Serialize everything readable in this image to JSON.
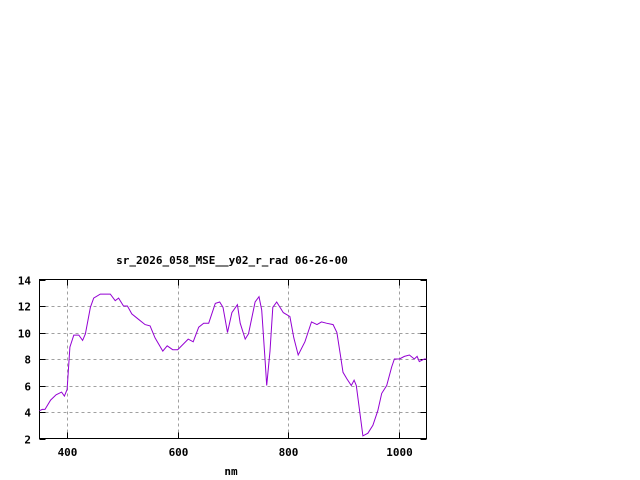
{
  "chart_data": {
    "type": "line",
    "title": "sr_2026_058_MSE__y02_r_rad 06-26-00",
    "xlabel": "nm",
    "ylabel": "",
    "xlim": [
      350,
      1050
    ],
    "ylim": [
      2,
      14
    ],
    "xticks": [
      400,
      600,
      800,
      1000
    ],
    "yticks": [
      2,
      4,
      6,
      8,
      10,
      12,
      14
    ],
    "grid": true,
    "series_color": "#9400d3",
    "series": [
      {
        "x": [
          350,
          355,
          360,
          370,
          380,
          390,
          395,
          400,
          405,
          412,
          421,
          428,
          433,
          442,
          448,
          460,
          478,
          487,
          493,
          502,
          509,
          517,
          529,
          541,
          550,
          559,
          573,
          581,
          591,
          600,
          619,
          628,
          638,
          647,
          656,
          668,
          676,
          682,
          690,
          698,
          708,
          713,
          722,
          728,
          740,
          747,
          752,
          758,
          761,
          767,
          772,
          779,
          791,
          803,
          810,
          818,
          830,
          842,
          852,
          860,
          869,
          881,
          888,
          895,
          899,
          906,
          914,
          919,
          923,
          929,
          935,
          944,
          953,
          962,
          969,
          978,
          987,
          992,
          1001,
          1010,
          1019,
          1028,
          1033,
          1037,
          1046,
          1050
        ],
        "y": [
          4.1,
          4.2,
          4.2,
          4.9,
          5.3,
          5.5,
          5.2,
          5.7,
          8.9,
          9.8,
          9.8,
          9.4,
          9.9,
          11.9,
          12.6,
          12.9,
          12.9,
          12.4,
          12.6,
          12.0,
          12.0,
          11.4,
          11.0,
          10.6,
          10.5,
          9.6,
          8.6,
          9.0,
          8.7,
          8.7,
          9.5,
          9.3,
          10.4,
          10.7,
          10.7,
          12.2,
          12.3,
          11.9,
          10.0,
          11.5,
          12.1,
          10.7,
          9.5,
          9.9,
          12.3,
          12.7,
          11.7,
          7.9,
          6.0,
          8.6,
          11.9,
          12.3,
          11.5,
          11.2,
          9.6,
          8.3,
          9.3,
          10.8,
          10.6,
          10.8,
          10.7,
          10.6,
          10.0,
          8.1,
          7.0,
          6.5,
          6.0,
          6.4,
          6.0,
          4.1,
          2.2,
          2.4,
          3.0,
          4.1,
          5.4,
          6.0,
          7.4,
          8.0,
          8.0,
          8.2,
          8.3,
          8.0,
          8.2,
          7.8,
          8.0,
          8.0
        ]
      }
    ]
  }
}
